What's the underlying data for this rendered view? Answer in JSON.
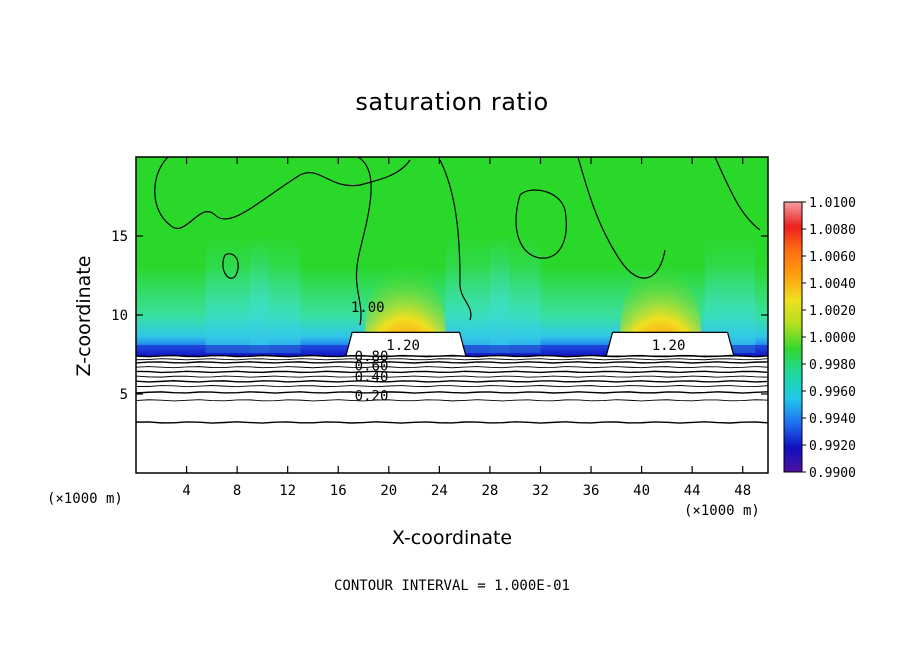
{
  "chart_data": {
    "type": "heatmap",
    "title": "saturation ratio",
    "xlabel": "X-coordinate",
    "ylabel": "Z-coordinate",
    "x_unit_left": "(×1000 m)",
    "x_unit_right": "(×1000 m)",
    "footer": "CONTOUR INTERVAL = 1.000E-01",
    "xlim": [
      0,
      50
    ],
    "ylim": [
      0,
      20
    ],
    "x_ticks": [
      "4",
      "8",
      "12",
      "16",
      "20",
      "24",
      "28",
      "32",
      "36",
      "40",
      "44",
      "48"
    ],
    "y_ticks": [
      "5",
      "10",
      "15"
    ],
    "colorbar": {
      "min": 0.99,
      "max": 1.01,
      "labels": [
        "1.0100",
        "1.0080",
        "1.0060",
        "1.0040",
        "1.0020",
        "1.0000",
        "0.9980",
        "0.9960",
        "0.9940",
        "0.9920",
        "0.9900"
      ]
    },
    "contour_labels": [
      "1.00",
      "1.20",
      "1.20",
      "0.80",
      "0.60",
      "0.40",
      "0.20"
    ]
  },
  "colors": {
    "background_field": "#22dd22",
    "high_core": "#ee1111",
    "low_band": "#1111cc",
    "cyan_band": "#22ccdd"
  }
}
